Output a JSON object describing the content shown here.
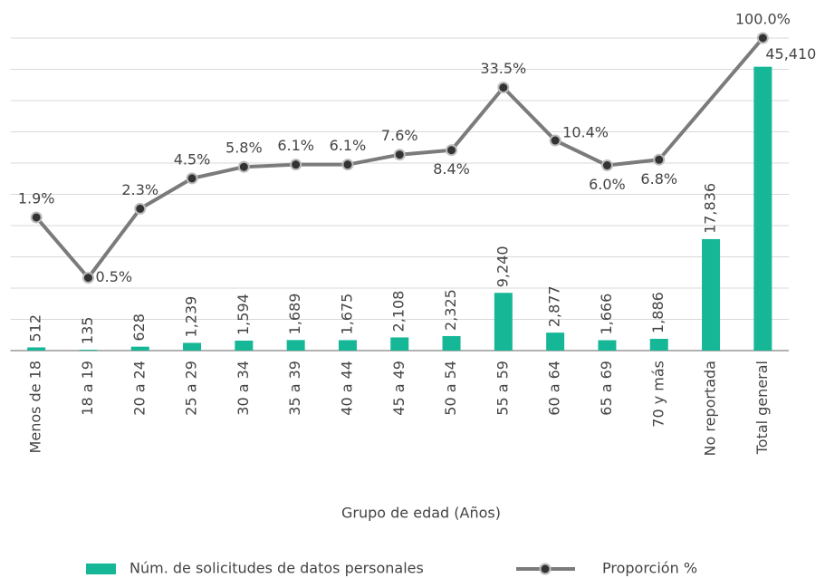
{
  "chart_data": {
    "type": "bar-line",
    "x_label": "Grupo de edad (Años)",
    "categories": [
      "Menos de 18",
      "18 a 19",
      "20 a 24",
      "25 a 29",
      "30 a 34",
      "35 a 39",
      "40 a 44",
      "45 a 49",
      "50 a 54",
      "55 a 59",
      "60 a 64",
      "65 a 69",
      "70 y más",
      "No reportada",
      "Total general"
    ],
    "series": [
      {
        "name": "Núm. de solicitudes de datos personales",
        "type": "bar",
        "color": "#16b797",
        "values": [
          512,
          135,
          628,
          1239,
          1594,
          1689,
          1675,
          2108,
          2325,
          9240,
          2877,
          1666,
          1886,
          17836,
          45410
        ],
        "value_labels": [
          "512",
          "135",
          "628",
          "1,239",
          "1,594",
          "1,689",
          "1,675",
          "2,108",
          "2,325",
          "9,240",
          "2,877",
          "1,666",
          "1,886",
          "17,836",
          "45,410"
        ]
      },
      {
        "name": "Proporción %",
        "type": "line",
        "axis": "y2",
        "color": "#7b7b7b",
        "values": [
          1.9,
          0.5,
          2.3,
          4.5,
          5.8,
          6.1,
          6.1,
          7.6,
          8.4,
          33.5,
          10.4,
          6.0,
          6.8,
          null,
          100.0
        ],
        "value_labels": [
          "1.9%",
          "0.5%",
          "2.3%",
          "4.5%",
          "5.8%",
          "6.1%",
          "6.1%",
          "7.6%",
          "8.4%",
          "33.5%",
          "10.4%",
          "6.0%",
          "6.8%",
          null,
          "100.0%"
        ]
      }
    ],
    "ylim": [
      0,
      50000
    ],
    "yticks": [
      0,
      5000,
      10000,
      15000,
      20000,
      25000,
      30000,
      35000,
      40000,
      45000,
      50000
    ],
    "y2lim": [
      0.1,
      100
    ],
    "y2_log": true,
    "grid": true,
    "legend": "bottom"
  }
}
